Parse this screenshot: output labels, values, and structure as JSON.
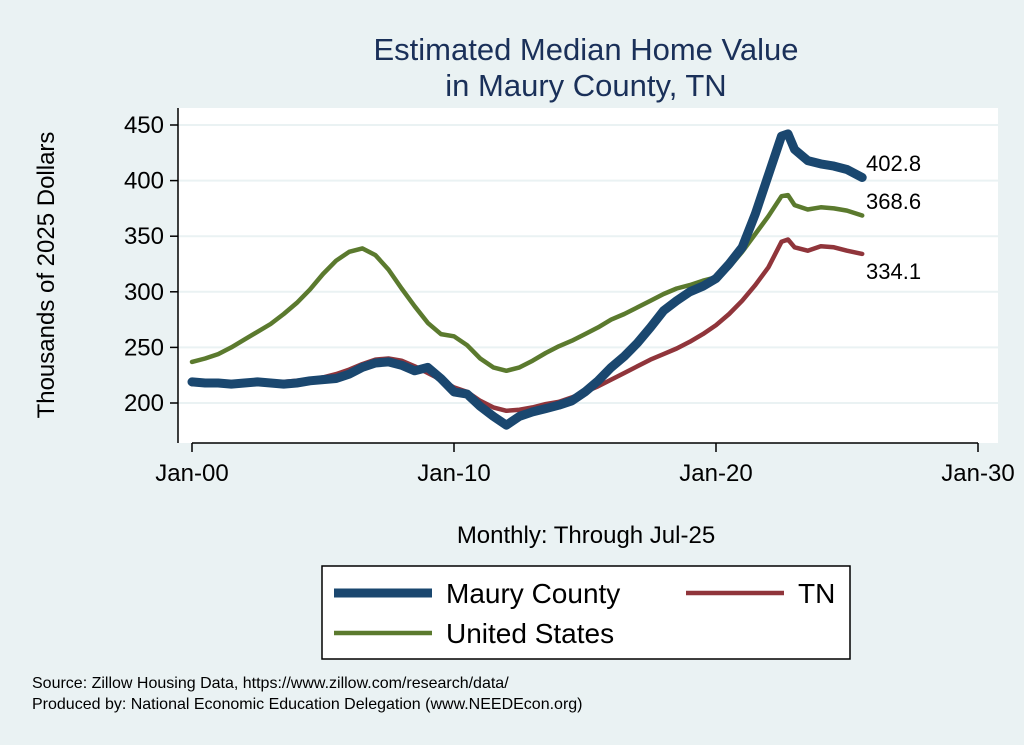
{
  "chart_data": {
    "type": "line",
    "title": [
      "Estimated Median Home Value",
      "in Maury County, TN"
    ],
    "xlabel": "Monthly: Through Jul-25",
    "ylabel": "Thousands of 2025 Dollars",
    "x_ticks": [
      "Jan-00",
      "Jan-10",
      "Jan-20",
      "Jan-30"
    ],
    "y_ticks": [
      200,
      250,
      300,
      350,
      400,
      450
    ],
    "ylim": [
      180,
      450
    ],
    "xlim": [
      2000,
      2030
    ],
    "grid": true,
    "legend_position": "bottom",
    "series": [
      {
        "name": "Maury County",
        "color": "#1a476f",
        "end_label": "402.8",
        "points": [
          [
            2000.0,
            219
          ],
          [
            2000.5,
            218
          ],
          [
            2001.0,
            218
          ],
          [
            2001.5,
            217
          ],
          [
            2002.0,
            218
          ],
          [
            2002.5,
            219
          ],
          [
            2003.0,
            218
          ],
          [
            2003.5,
            217
          ],
          [
            2004.0,
            218
          ],
          [
            2004.5,
            220
          ],
          [
            2005.0,
            221
          ],
          [
            2005.5,
            222
          ],
          [
            2006.0,
            226
          ],
          [
            2006.5,
            232
          ],
          [
            2007.0,
            236
          ],
          [
            2007.5,
            237
          ],
          [
            2008.0,
            234
          ],
          [
            2008.5,
            229
          ],
          [
            2009.0,
            232
          ],
          [
            2009.5,
            222
          ],
          [
            2010.0,
            210
          ],
          [
            2010.5,
            208
          ],
          [
            2011.0,
            197
          ],
          [
            2011.5,
            188
          ],
          [
            2012.0,
            180
          ],
          [
            2012.5,
            188
          ],
          [
            2013.0,
            192
          ],
          [
            2013.5,
            195
          ],
          [
            2014.0,
            198
          ],
          [
            2014.5,
            202
          ],
          [
            2015.0,
            210
          ],
          [
            2015.5,
            220
          ],
          [
            2016.0,
            232
          ],
          [
            2016.5,
            242
          ],
          [
            2017.0,
            254
          ],
          [
            2017.5,
            268
          ],
          [
            2018.0,
            283
          ],
          [
            2018.5,
            292
          ],
          [
            2019.0,
            300
          ],
          [
            2019.5,
            305
          ],
          [
            2020.0,
            312
          ],
          [
            2020.5,
            325
          ],
          [
            2021.0,
            340
          ],
          [
            2021.5,
            370
          ],
          [
            2022.0,
            405
          ],
          [
            2022.5,
            440
          ],
          [
            2022.75,
            442
          ],
          [
            2023.0,
            428
          ],
          [
            2023.5,
            418
          ],
          [
            2024.0,
            415
          ],
          [
            2024.5,
            413
          ],
          [
            2025.0,
            410
          ],
          [
            2025.58,
            402.8
          ]
        ]
      },
      {
        "name": "United States",
        "color": "#5b7a2e",
        "end_label": "368.6",
        "points": [
          [
            2000.0,
            237
          ],
          [
            2000.5,
            240
          ],
          [
            2001.0,
            244
          ],
          [
            2001.5,
            250
          ],
          [
            2002.0,
            257
          ],
          [
            2002.5,
            264
          ],
          [
            2003.0,
            271
          ],
          [
            2003.5,
            280
          ],
          [
            2004.0,
            290
          ],
          [
            2004.5,
            302
          ],
          [
            2005.0,
            316
          ],
          [
            2005.5,
            328
          ],
          [
            2006.0,
            336
          ],
          [
            2006.5,
            339
          ],
          [
            2007.0,
            333
          ],
          [
            2007.5,
            320
          ],
          [
            2008.0,
            303
          ],
          [
            2008.5,
            287
          ],
          [
            2009.0,
            272
          ],
          [
            2009.5,
            262
          ],
          [
            2010.0,
            260
          ],
          [
            2010.5,
            252
          ],
          [
            2011.0,
            240
          ],
          [
            2011.5,
            232
          ],
          [
            2012.0,
            229
          ],
          [
            2012.5,
            232
          ],
          [
            2013.0,
            238
          ],
          [
            2013.5,
            245
          ],
          [
            2014.0,
            251
          ],
          [
            2014.5,
            256
          ],
          [
            2015.0,
            262
          ],
          [
            2015.5,
            268
          ],
          [
            2016.0,
            275
          ],
          [
            2016.5,
            280
          ],
          [
            2017.0,
            286
          ],
          [
            2017.5,
            292
          ],
          [
            2018.0,
            298
          ],
          [
            2018.5,
            303
          ],
          [
            2019.0,
            306
          ],
          [
            2019.5,
            310
          ],
          [
            2020.0,
            313
          ],
          [
            2020.5,
            322
          ],
          [
            2021.0,
            336
          ],
          [
            2021.5,
            352
          ],
          [
            2022.0,
            368
          ],
          [
            2022.5,
            386
          ],
          [
            2022.75,
            387
          ],
          [
            2023.0,
            378
          ],
          [
            2023.5,
            374
          ],
          [
            2024.0,
            376
          ],
          [
            2024.5,
            375
          ],
          [
            2025.0,
            373
          ],
          [
            2025.58,
            368.6
          ]
        ]
      },
      {
        "name": "TN",
        "color": "#90353b",
        "end_label": "334.1",
        "points": [
          [
            2000.0,
            217
          ],
          [
            2000.5,
            217
          ],
          [
            2001.0,
            217
          ],
          [
            2001.5,
            218
          ],
          [
            2002.0,
            218
          ],
          [
            2002.5,
            219
          ],
          [
            2003.0,
            219
          ],
          [
            2003.5,
            219
          ],
          [
            2004.0,
            220
          ],
          [
            2004.5,
            221
          ],
          [
            2005.0,
            223
          ],
          [
            2005.5,
            226
          ],
          [
            2006.0,
            230
          ],
          [
            2006.5,
            235
          ],
          [
            2007.0,
            239
          ],
          [
            2007.5,
            240
          ],
          [
            2008.0,
            238
          ],
          [
            2008.5,
            233
          ],
          [
            2009.0,
            227
          ],
          [
            2009.5,
            221
          ],
          [
            2010.0,
            214
          ],
          [
            2010.5,
            210
          ],
          [
            2011.0,
            202
          ],
          [
            2011.5,
            196
          ],
          [
            2012.0,
            193
          ],
          [
            2012.5,
            194
          ],
          [
            2013.0,
            196
          ],
          [
            2013.5,
            199
          ],
          [
            2014.0,
            201
          ],
          [
            2014.5,
            205
          ],
          [
            2015.0,
            210
          ],
          [
            2015.5,
            215
          ],
          [
            2016.0,
            221
          ],
          [
            2016.5,
            227
          ],
          [
            2017.0,
            233
          ],
          [
            2017.5,
            239
          ],
          [
            2018.0,
            244
          ],
          [
            2018.5,
            249
          ],
          [
            2019.0,
            255
          ],
          [
            2019.5,
            262
          ],
          [
            2020.0,
            270
          ],
          [
            2020.5,
            280
          ],
          [
            2021.0,
            292
          ],
          [
            2021.5,
            306
          ],
          [
            2022.0,
            322
          ],
          [
            2022.5,
            345
          ],
          [
            2022.75,
            347
          ],
          [
            2023.0,
            340
          ],
          [
            2023.5,
            337
          ],
          [
            2024.0,
            341
          ],
          [
            2024.5,
            340
          ],
          [
            2025.0,
            337
          ],
          [
            2025.58,
            334.1
          ]
        ]
      }
    ],
    "legend": [
      {
        "label": "Maury County",
        "series": 0
      },
      {
        "label": "TN",
        "series": 2
      },
      {
        "label": "United States",
        "series": 1
      }
    ]
  },
  "notes": [
    "Source: Zillow Housing Data, https://www.zillow.com/research/data/",
    "Produced by: National Economic Education Delegation (www.NEEDEcon.org)"
  ]
}
